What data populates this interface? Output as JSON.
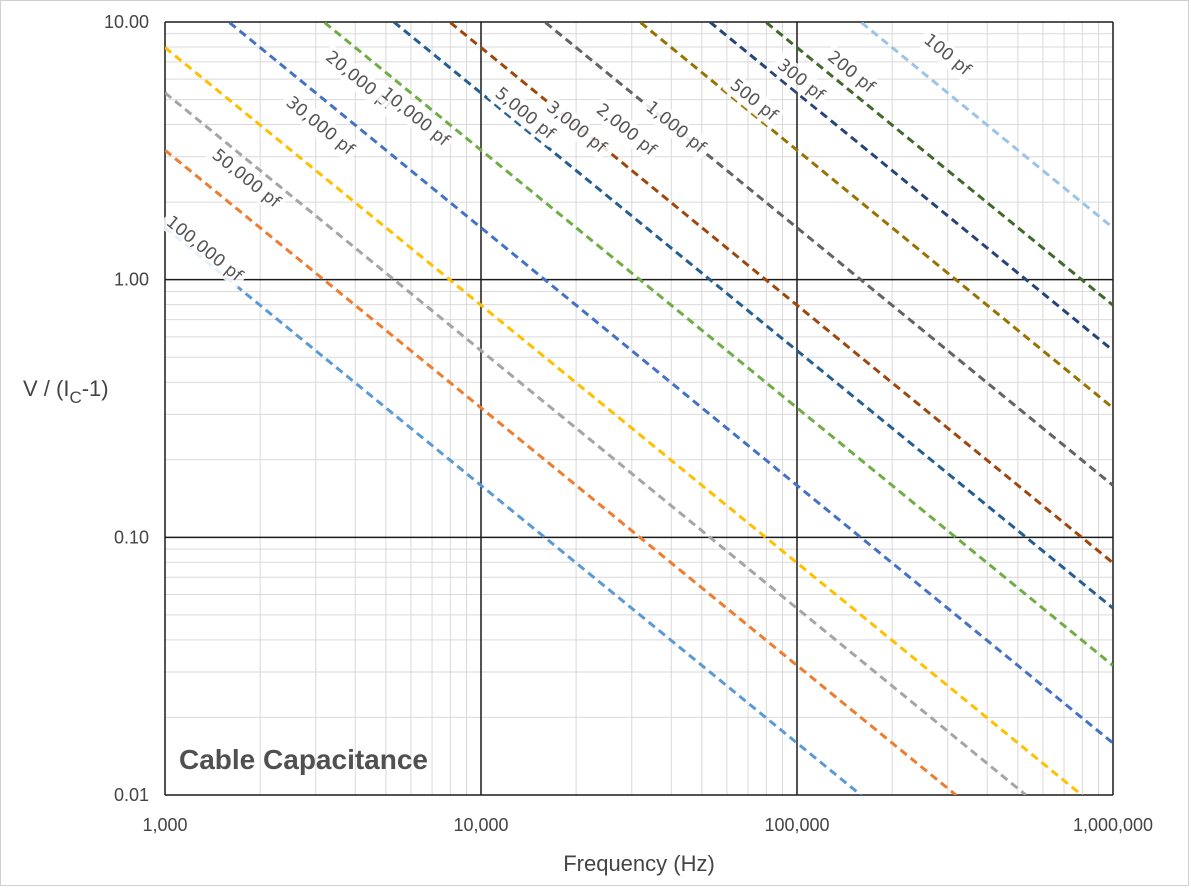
{
  "chart_data": {
    "type": "line",
    "title": "Cable Capacitance",
    "xlabel": "Frequency (Hz)",
    "ylabel": {
      "prefix": "V / (I",
      "subscript": "C",
      "suffix": "-1)"
    },
    "x_scale": "log",
    "y_scale": "log",
    "xlim": [
      1000,
      1000000
    ],
    "ylim": [
      0.01,
      10
    ],
    "x_ticks": [
      {
        "value": 1000,
        "label": "1,000"
      },
      {
        "value": 10000,
        "label": "10,000"
      },
      {
        "value": 100000,
        "label": "100,000"
      },
      {
        "value": 1000000,
        "label": "1,000,000"
      }
    ],
    "y_ticks": [
      {
        "value": 10,
        "label": "10.00"
      },
      {
        "value": 1,
        "label": "1.00"
      },
      {
        "value": 0.1,
        "label": "0.10"
      },
      {
        "value": 0.01,
        "label": "0.01"
      }
    ],
    "grid": true,
    "line_style": "dashed",
    "series": [
      {
        "name": "100,000 pf",
        "capacitance_pf": 100000,
        "color": "#5b9bd5",
        "x": [
          1000,
          160000
        ],
        "y": [
          1.59,
          0.00995
        ]
      },
      {
        "name": "50,000 pf",
        "capacitance_pf": 50000,
        "color": "#ed7d31",
        "x": [
          1000,
          320000
        ],
        "y": [
          3.18,
          0.00995
        ]
      },
      {
        "name": "30,000 pf",
        "capacitance_pf": 30000,
        "color": "#a5a5a5",
        "x": [
          1000,
          530000
        ],
        "y": [
          5.31,
          0.01
        ]
      },
      {
        "name": "20,000 pf",
        "capacitance_pf": 20000,
        "color": "#ffc000",
        "x": [
          1000,
          800000
        ],
        "y": [
          7.96,
          0.00995
        ]
      },
      {
        "name": "10,000 pf",
        "capacitance_pf": 10000,
        "color": "#4472c4",
        "x": [
          1600,
          1000000
        ],
        "y": [
          9.95,
          0.0159
        ]
      },
      {
        "name": "5,000 pf",
        "capacitance_pf": 5000,
        "color": "#70ad47",
        "x": [
          3200,
          1000000
        ],
        "y": [
          9.95,
          0.0318
        ]
      },
      {
        "name": "3,000 pf",
        "capacitance_pf": 3000,
        "color": "#255e91",
        "x": [
          5300,
          1000000
        ],
        "y": [
          10.0,
          0.0531
        ]
      },
      {
        "name": "2,000 pf",
        "capacitance_pf": 2000,
        "color": "#9e480e",
        "x": [
          8000,
          1000000
        ],
        "y": [
          9.95,
          0.0796
        ]
      },
      {
        "name": "1,000 pf",
        "capacitance_pf": 1000,
        "color": "#636363",
        "x": [
          16000,
          1000000
        ],
        "y": [
          9.95,
          0.159
        ]
      },
      {
        "name": "500 pf",
        "capacitance_pf": 500,
        "color": "#997300",
        "x": [
          32000,
          1000000
        ],
        "y": [
          9.95,
          0.318
        ]
      },
      {
        "name": "300 pf",
        "capacitance_pf": 300,
        "color": "#264478",
        "x": [
          53000,
          1000000
        ],
        "y": [
          10.0,
          0.531
        ]
      },
      {
        "name": "200 pf",
        "capacitance_pf": 200,
        "color": "#43682b",
        "x": [
          80000,
          1000000
        ],
        "y": [
          9.95,
          0.796
        ]
      },
      {
        "name": "100 pf",
        "capacitance_pf": 100,
        "color": "#9dc3e6",
        "x": [
          160000,
          1000000
        ],
        "y": [
          9.95,
          1.59
        ]
      }
    ]
  }
}
